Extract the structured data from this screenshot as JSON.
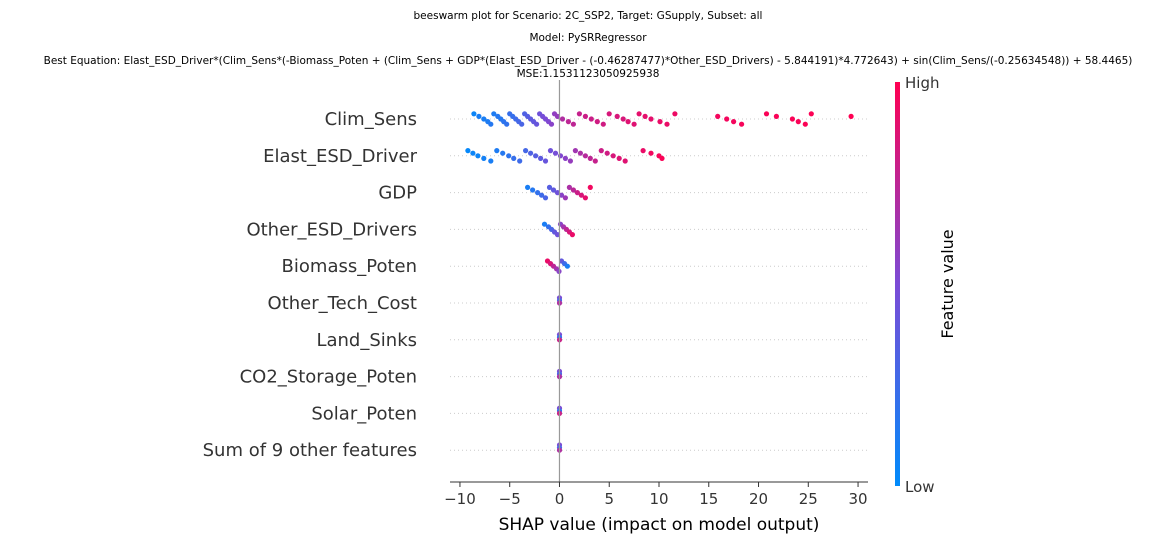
{
  "chart_data": {
    "type": "scatter",
    "subtype": "beeswarm",
    "title_lines": [
      "beeswarm plot for Scenario: 2C_SSP2, Target: GSupply, Subset: all",
      "Model: PySRRegressor",
      "Best Equation: Elast_ESD_Driver*(Clim_Sens*(-Biomass_Poten + (Clim_Sens + GDP*(Elast_ESD_Driver - (-0.46287477)*Other_ESD_Drivers) - 5.844191)*4.772643) + sin(Clim_Sens/(-0.25634548)) + 58.4465)",
      "MSE:1.1531123050925938"
    ],
    "xlabel": "SHAP value (impact on model output)",
    "xlim": [
      -11,
      31
    ],
    "xticks": [
      -10,
      -5,
      0,
      5,
      10,
      15,
      20,
      25,
      30
    ],
    "xtick_labels": [
      "−10",
      "−5",
      "0",
      "5",
      "10",
      "15",
      "20",
      "25",
      "30"
    ],
    "grid": false,
    "colorbar": {
      "label": "Feature value",
      "high": "High",
      "low": "Low",
      "color_low": "#008bfb",
      "color_high": "#ff0052"
    },
    "features": [
      {
        "name": "Clim_Sens",
        "points": [
          [
            -8.6,
            0.05
          ],
          [
            -8.1,
            0.1
          ],
          [
            -7.6,
            0.1
          ],
          [
            -7.2,
            0.12
          ],
          [
            -6.9,
            0.15
          ],
          [
            -6.6,
            0.12
          ],
          [
            -6.2,
            0.15
          ],
          [
            -5.9,
            0.15
          ],
          [
            -5.6,
            0.18
          ],
          [
            -5.3,
            0.2
          ],
          [
            -5.0,
            0.22
          ],
          [
            -4.7,
            0.22
          ],
          [
            -4.4,
            0.25
          ],
          [
            -4.1,
            0.28
          ],
          [
            -3.8,
            0.3
          ],
          [
            -3.5,
            0.32
          ],
          [
            -3.2,
            0.35
          ],
          [
            -2.9,
            0.38
          ],
          [
            -2.6,
            0.4
          ],
          [
            -2.3,
            0.42
          ],
          [
            -2.0,
            0.45
          ],
          [
            -1.7,
            0.48
          ],
          [
            -1.4,
            0.5
          ],
          [
            -1.1,
            0.52
          ],
          [
            -0.8,
            0.55
          ],
          [
            -0.5,
            0.58
          ],
          [
            -0.2,
            0.6
          ],
          [
            0.3,
            0.7
          ],
          [
            0.9,
            0.75
          ],
          [
            1.4,
            0.75
          ],
          [
            2.0,
            0.78
          ],
          [
            2.6,
            0.8
          ],
          [
            3.2,
            0.8
          ],
          [
            3.8,
            0.82
          ],
          [
            4.4,
            0.82
          ],
          [
            5.0,
            0.85
          ],
          [
            5.8,
            0.85
          ],
          [
            6.4,
            0.85
          ],
          [
            6.9,
            0.88
          ],
          [
            7.5,
            0.88
          ],
          [
            8.0,
            0.9
          ],
          [
            8.6,
            0.9
          ],
          [
            9.2,
            0.9
          ],
          [
            10.1,
            0.92
          ],
          [
            10.8,
            0.92
          ],
          [
            11.6,
            0.93
          ],
          [
            15.9,
            0.96
          ],
          [
            16.8,
            0.96
          ],
          [
            17.5,
            0.96
          ],
          [
            18.3,
            0.97
          ],
          [
            20.8,
            0.98
          ],
          [
            21.8,
            0.98
          ],
          [
            23.4,
            0.98
          ],
          [
            24.0,
            0.98
          ],
          [
            24.7,
            0.99
          ],
          [
            25.3,
            0.99
          ],
          [
            29.3,
            1.0
          ]
        ]
      },
      {
        "name": "Elast_ESD_Driver",
        "points": [
          [
            -9.2,
            0.02
          ],
          [
            -8.7,
            0.05
          ],
          [
            -8.2,
            0.05
          ],
          [
            -7.6,
            0.08
          ],
          [
            -6.9,
            0.1
          ],
          [
            -6.3,
            0.12
          ],
          [
            -5.7,
            0.15
          ],
          [
            -5.1,
            0.18
          ],
          [
            -4.6,
            0.22
          ],
          [
            -4.0,
            0.25
          ],
          [
            -3.4,
            0.28
          ],
          [
            -2.9,
            0.32
          ],
          [
            -2.4,
            0.35
          ],
          [
            -1.9,
            0.38
          ],
          [
            -1.4,
            0.42
          ],
          [
            -0.9,
            0.45
          ],
          [
            -0.4,
            0.48
          ],
          [
            0.1,
            0.52
          ],
          [
            0.6,
            0.56
          ],
          [
            1.1,
            0.6
          ],
          [
            1.6,
            0.64
          ],
          [
            2.1,
            0.68
          ],
          [
            2.6,
            0.72
          ],
          [
            3.1,
            0.75
          ],
          [
            3.6,
            0.78
          ],
          [
            4.2,
            0.8
          ],
          [
            4.8,
            0.82
          ],
          [
            5.4,
            0.85
          ],
          [
            6.0,
            0.87
          ],
          [
            6.6,
            0.88
          ],
          [
            8.4,
            0.92
          ],
          [
            9.2,
            0.95
          ],
          [
            10.0,
            0.97
          ],
          [
            10.3,
            0.98
          ]
        ]
      },
      {
        "name": "GDP",
        "points": [
          [
            -3.2,
            0.1
          ],
          [
            -2.7,
            0.15
          ],
          [
            -2.2,
            0.2
          ],
          [
            -1.8,
            0.25
          ],
          [
            -1.4,
            0.3
          ],
          [
            -1.0,
            0.35
          ],
          [
            -0.6,
            0.4
          ],
          [
            -0.2,
            0.45
          ],
          [
            0.2,
            0.55
          ],
          [
            0.6,
            0.62
          ],
          [
            1.0,
            0.68
          ],
          [
            1.4,
            0.74
          ],
          [
            1.8,
            0.8
          ],
          [
            2.2,
            0.85
          ],
          [
            2.6,
            0.9
          ],
          [
            3.1,
            0.95
          ]
        ]
      },
      {
        "name": "Other_ESD_Drivers",
        "points": [
          [
            -1.5,
            0.1
          ],
          [
            -1.1,
            0.2
          ],
          [
            -0.8,
            0.3
          ],
          [
            -0.5,
            0.4
          ],
          [
            -0.2,
            0.45
          ],
          [
            0.1,
            0.55
          ],
          [
            0.4,
            0.65
          ],
          [
            0.7,
            0.75
          ],
          [
            1.0,
            0.85
          ],
          [
            1.3,
            0.92
          ]
        ]
      },
      {
        "name": "Biomass_Poten",
        "points": [
          [
            -1.2,
            0.92
          ],
          [
            -0.9,
            0.85
          ],
          [
            -0.6,
            0.75
          ],
          [
            -0.3,
            0.65
          ],
          [
            -0.05,
            0.55
          ],
          [
            0.2,
            0.4
          ],
          [
            0.5,
            0.25
          ],
          [
            0.8,
            0.1
          ]
        ]
      },
      {
        "name": "Other_Tech_Cost",
        "points": [
          [
            0.0,
            0.5
          ],
          [
            0.0,
            0.3
          ],
          [
            0.0,
            0.7
          ]
        ]
      },
      {
        "name": "Land_Sinks",
        "points": [
          [
            0.0,
            0.5
          ],
          [
            0.0,
            0.2
          ],
          [
            0.0,
            0.8
          ]
        ]
      },
      {
        "name": "CO2_Storage_Poten",
        "points": [
          [
            0.0,
            0.5
          ],
          [
            0.0,
            0.3
          ],
          [
            0.0,
            0.7
          ]
        ]
      },
      {
        "name": "Solar_Poten",
        "points": [
          [
            0.0,
            0.5
          ],
          [
            0.0,
            0.2
          ],
          [
            0.0,
            0.8
          ]
        ]
      },
      {
        "name": "Sum of 9 other features",
        "points": [
          [
            0.0,
            0.5
          ],
          [
            0.0,
            0.3
          ],
          [
            0.0,
            0.7
          ]
        ]
      }
    ]
  }
}
